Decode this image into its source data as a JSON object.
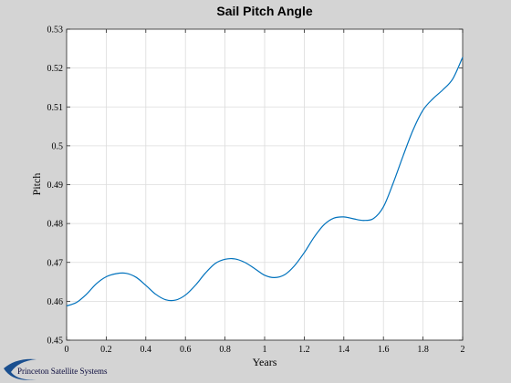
{
  "chart_data": {
    "type": "line",
    "title": "Sail Pitch Angle",
    "xlabel": "Years",
    "ylabel": "Pitch",
    "xlim": [
      0,
      2
    ],
    "ylim": [
      0.45,
      0.53
    ],
    "x_ticks": [
      0,
      0.2,
      0.4,
      0.6,
      0.8,
      1,
      1.2,
      1.4,
      1.6,
      1.8,
      2
    ],
    "y_ticks": [
      0.45,
      0.46,
      0.47,
      0.48,
      0.49,
      0.5,
      0.51,
      0.52,
      0.53
    ],
    "grid": true,
    "line_color": "#0072bd",
    "series": [
      {
        "x": [
          0,
          0.05,
          0.1,
          0.15,
          0.2,
          0.25,
          0.3,
          0.35,
          0.4,
          0.45,
          0.5,
          0.55,
          0.6,
          0.65,
          0.7,
          0.75,
          0.8,
          0.85,
          0.9,
          0.95,
          1.0,
          1.05,
          1.1,
          1.15,
          1.2,
          1.25,
          1.3,
          1.35,
          1.4,
          1.45,
          1.5,
          1.55,
          1.6,
          1.65,
          1.7,
          1.75,
          1.8,
          1.85,
          1.9,
          1.95,
          2.0
        ],
        "y": [
          0.4588,
          0.4597,
          0.4618,
          0.4645,
          0.4663,
          0.4671,
          0.4672,
          0.4662,
          0.4641,
          0.4618,
          0.4604,
          0.4603,
          0.4616,
          0.4641,
          0.4672,
          0.4697,
          0.4708,
          0.4709,
          0.47,
          0.4684,
          0.4667,
          0.4661,
          0.4668,
          0.4691,
          0.4725,
          0.4765,
          0.4797,
          0.4814,
          0.4817,
          0.4812,
          0.4808,
          0.4813,
          0.4843,
          0.4905,
          0.4975,
          0.5041,
          0.5092,
          0.5121,
          0.5144,
          0.5172,
          0.5228
        ]
      }
    ]
  },
  "branding": {
    "company": "Princeton Satellite Systems",
    "logo_color": "#1a4f8f"
  }
}
